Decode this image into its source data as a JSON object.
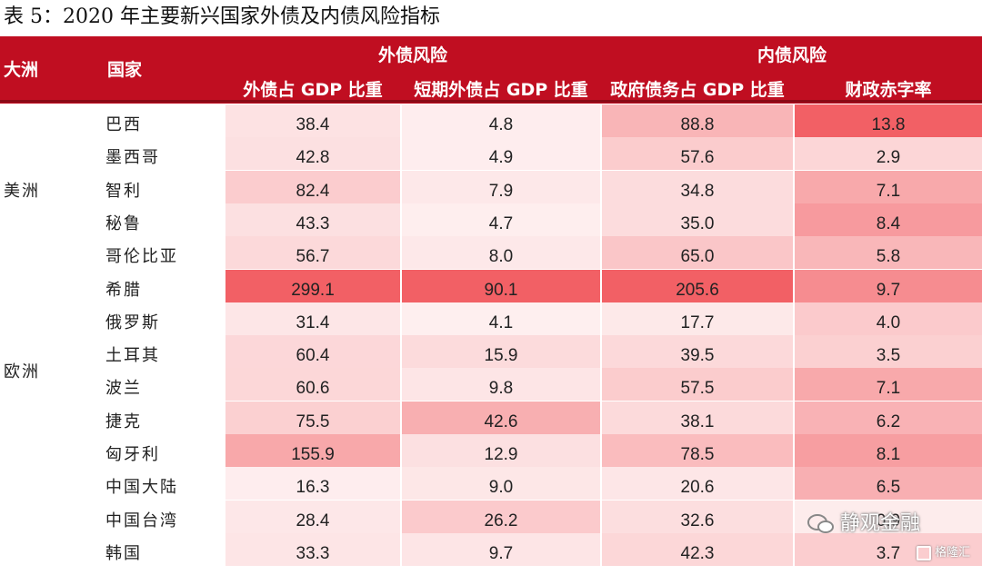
{
  "title": "表 5：2020 年主要新兴国家外债及内债风险指标",
  "header": {
    "continent": "大洲",
    "country": "国家",
    "group_external": "外债风险",
    "group_internal": "内债风险",
    "col1": "外债占 GDP 比重",
    "col2": "短期外债占 GDP 比重",
    "col3": "政府债务占 GDP 比重",
    "col4": "财政赤字率"
  },
  "continents": {
    "americas": "美洲",
    "europe": "欧洲"
  },
  "rows": [
    {
      "country": "巴西",
      "v1": "38.4",
      "v2": "4.8",
      "v3": "88.8",
      "v4": "13.8"
    },
    {
      "country": "墨西哥",
      "v1": "42.8",
      "v2": "4.9",
      "v3": "57.6",
      "v4": "2.9"
    },
    {
      "country": "智利",
      "v1": "82.4",
      "v2": "7.9",
      "v3": "34.8",
      "v4": "7.1"
    },
    {
      "country": "秘鲁",
      "v1": "43.3",
      "v2": "4.7",
      "v3": "35.0",
      "v4": "8.4"
    },
    {
      "country": "哥伦比亚",
      "v1": "56.7",
      "v2": "8.0",
      "v3": "65.0",
      "v4": "5.8"
    },
    {
      "country": "希腊",
      "v1": "299.1",
      "v2": "90.1",
      "v3": "205.6",
      "v4": "9.7"
    },
    {
      "country": "俄罗斯",
      "v1": "31.4",
      "v2": "4.1",
      "v3": "17.7",
      "v4": "4.0"
    },
    {
      "country": "土耳其",
      "v1": "60.4",
      "v2": "15.9",
      "v3": "39.5",
      "v4": "3.5"
    },
    {
      "country": "波兰",
      "v1": "60.6",
      "v2": "9.8",
      "v3": "57.5",
      "v4": "7.1"
    },
    {
      "country": "捷克",
      "v1": "75.5",
      "v2": "42.6",
      "v3": "38.1",
      "v4": "6.2"
    },
    {
      "country": "匈牙利",
      "v1": "155.9",
      "v2": "12.9",
      "v3": "78.5",
      "v4": "8.1"
    },
    {
      "country": "中国大陆",
      "v1": "16.3",
      "v2": "9.0",
      "v3": "20.6",
      "v4": "6.5"
    },
    {
      "country": "中国台湾",
      "v1": "28.4",
      "v2": "26.2",
      "v3": "32.6",
      "v4": "0.9"
    },
    {
      "country": "韩国",
      "v1": "33.3",
      "v2": "9.7",
      "v3": "42.3",
      "v4": "3.7"
    }
  ],
  "colors": {
    "header_bg": "#c00e21",
    "heat_base": "#ffffff",
    "heat_max": "#f26065"
  },
  "watermark": "静观金融",
  "logo_text": "格隆汇"
}
